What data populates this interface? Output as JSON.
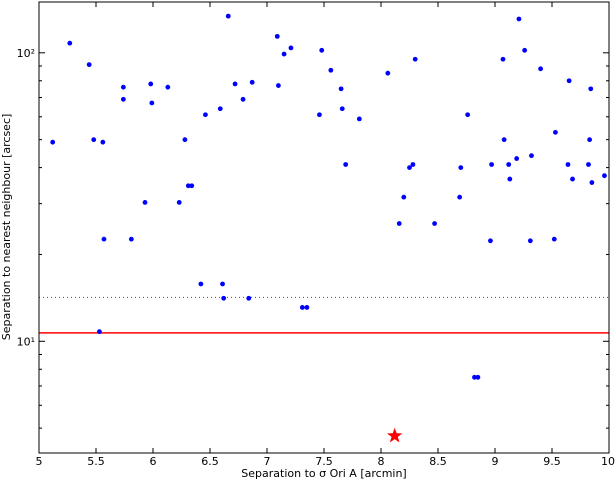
{
  "chart_data": {
    "type": "scatter",
    "title": "",
    "xlabel": "Separation to σ Ori A [arcmin]",
    "ylabel": "Separation to nearest neighbour [arcsec]",
    "xlim": [
      5,
      10
    ],
    "ylim": [
      4.1,
      150
    ],
    "yscale": "log",
    "grid": false,
    "x_ticks": [
      5,
      5.5,
      6,
      6.5,
      7,
      7.5,
      8,
      8.5,
      9,
      9.5,
      10
    ],
    "x_tick_labels": [
      "5",
      "5.5",
      "6",
      "6.5",
      "7",
      "7.5",
      "8",
      "8.5",
      "9",
      "9.5",
      "10"
    ],
    "y_major_ticks": [
      10,
      100
    ],
    "y_tick_labels": [
      "10¹",
      "10²"
    ],
    "colors": {
      "points": "#0000ff",
      "reference_lines": "#ff0000",
      "star": "#ff0000"
    },
    "reference_lines": [
      {
        "y": 10.7,
        "style": "solid"
      },
      {
        "y": 14.2,
        "style": "dotted"
      }
    ],
    "highlight": {
      "x": 8.12,
      "y": 4.7,
      "marker": "star"
    },
    "points": [
      [
        5.12,
        49
      ],
      [
        5.27,
        108
      ],
      [
        5.44,
        91
      ],
      [
        5.48,
        50
      ],
      [
        5.53,
        10.8
      ],
      [
        5.56,
        49
      ],
      [
        5.57,
        22.6
      ],
      [
        5.74,
        76
      ],
      [
        5.74,
        69
      ],
      [
        5.81,
        22.6
      ],
      [
        5.93,
        30.3
      ],
      [
        5.98,
        78
      ],
      [
        5.99,
        67
      ],
      [
        6.13,
        76
      ],
      [
        6.23,
        30.3
      ],
      [
        6.28,
        50
      ],
      [
        6.31,
        34.6
      ],
      [
        6.34,
        34.6
      ],
      [
        6.42,
        15.8
      ],
      [
        6.46,
        61
      ],
      [
        6.59,
        64
      ],
      [
        6.61,
        15.8
      ],
      [
        6.62,
        14.1
      ],
      [
        6.66,
        134
      ],
      [
        6.72,
        78
      ],
      [
        6.79,
        69
      ],
      [
        6.84,
        14.1
      ],
      [
        6.87,
        79
      ],
      [
        7.09,
        114
      ],
      [
        7.1,
        77
      ],
      [
        7.15,
        99
      ],
      [
        7.21,
        104
      ],
      [
        7.31,
        13.1
      ],
      [
        7.35,
        13.1
      ],
      [
        7.46,
        61
      ],
      [
        7.48,
        102
      ],
      [
        7.56,
        87
      ],
      [
        7.65,
        75
      ],
      [
        7.66,
        64
      ],
      [
        7.69,
        41
      ],
      [
        7.81,
        59
      ],
      [
        8.06,
        85
      ],
      [
        8.16,
        25.6
      ],
      [
        8.2,
        31.6
      ],
      [
        8.25,
        40
      ],
      [
        8.28,
        41
      ],
      [
        8.3,
        95
      ],
      [
        8.47,
        25.6
      ],
      [
        8.69,
        31.6
      ],
      [
        8.7,
        40
      ],
      [
        8.76,
        61
      ],
      [
        8.82,
        7.5
      ],
      [
        8.85,
        7.5
      ],
      [
        8.96,
        22.3
      ],
      [
        8.97,
        41
      ],
      [
        9.07,
        95
      ],
      [
        9.08,
        50
      ],
      [
        9.12,
        41
      ],
      [
        9.13,
        36.5
      ],
      [
        9.19,
        43
      ],
      [
        9.21,
        131
      ],
      [
        9.26,
        102
      ],
      [
        9.31,
        22.3
      ],
      [
        9.32,
        44
      ],
      [
        9.4,
        88
      ],
      [
        9.52,
        22.6
      ],
      [
        9.53,
        53
      ],
      [
        9.64,
        41
      ],
      [
        9.65,
        80
      ],
      [
        9.68,
        36.5
      ],
      [
        9.82,
        41
      ],
      [
        9.83,
        50
      ],
      [
        9.84,
        75
      ],
      [
        9.85,
        35.5
      ],
      [
        9.96,
        37.5
      ]
    ]
  }
}
